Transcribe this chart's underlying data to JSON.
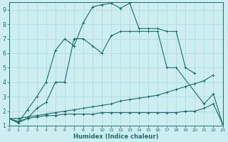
{
  "xlabel": "Humidex (Indice chaleur)",
  "bg_color": "#cceef0",
  "grid_color": "#b0dde0",
  "line_color": "#1a6e6a",
  "xlim": [
    0,
    23
  ],
  "ylim": [
    1,
    9.5
  ],
  "xticks": [
    0,
    1,
    2,
    3,
    4,
    5,
    6,
    7,
    8,
    9,
    10,
    11,
    12,
    13,
    14,
    15,
    16,
    17,
    18,
    19,
    20,
    21,
    22,
    23
  ],
  "yticks": [
    1,
    2,
    3,
    4,
    5,
    6,
    7,
    8,
    9
  ],
  "series": [
    {
      "x": [
        0,
        1,
        2,
        3,
        4,
        5,
        6,
        7,
        8,
        9,
        10,
        11,
        12,
        13,
        14,
        15,
        16,
        17,
        18,
        19,
        20
      ],
      "y": [
        1.5,
        1.2,
        2.1,
        3.0,
        4.0,
        6.2,
        7.0,
        6.5,
        8.1,
        9.2,
        9.35,
        9.45,
        9.1,
        9.45,
        7.7,
        7.7,
        7.7,
        7.5,
        7.5,
        5.0,
        4.6
      ]
    },
    {
      "x": [
        0,
        1,
        2,
        3,
        4,
        5,
        6,
        7,
        8,
        9,
        10,
        11,
        12,
        13,
        14,
        15,
        16,
        17,
        18,
        21,
        22,
        23
      ],
      "y": [
        1.5,
        1.2,
        1.5,
        2.2,
        2.6,
        4.0,
        4.0,
        7.0,
        7.0,
        6.5,
        6.0,
        7.2,
        7.5,
        7.5,
        7.5,
        7.5,
        7.5,
        5.0,
        5.0,
        2.5,
        3.2,
        1.1
      ]
    },
    {
      "x": [
        0,
        1,
        2,
        3,
        4,
        5,
        6,
        7,
        8,
        9,
        10,
        11,
        12,
        13,
        14,
        15,
        16,
        17,
        18,
        19,
        20,
        21,
        22
      ],
      "y": [
        1.5,
        1.5,
        1.6,
        1.7,
        1.8,
        1.9,
        2.0,
        2.1,
        2.2,
        2.3,
        2.4,
        2.5,
        2.7,
        2.8,
        2.9,
        3.0,
        3.1,
        3.3,
        3.5,
        3.7,
        3.9,
        4.1,
        4.5
      ]
    },
    {
      "x": [
        0,
        1,
        2,
        3,
        4,
        5,
        6,
        7,
        8,
        9,
        10,
        11,
        12,
        13,
        14,
        15,
        16,
        17,
        18,
        19,
        20,
        21,
        22,
        23
      ],
      "y": [
        1.5,
        1.3,
        1.5,
        1.6,
        1.7,
        1.7,
        1.8,
        1.8,
        1.8,
        1.8,
        1.9,
        1.9,
        1.9,
        1.9,
        1.9,
        1.9,
        1.9,
        1.9,
        1.9,
        2.0,
        2.0,
        2.2,
        2.5,
        1.1
      ]
    }
  ]
}
